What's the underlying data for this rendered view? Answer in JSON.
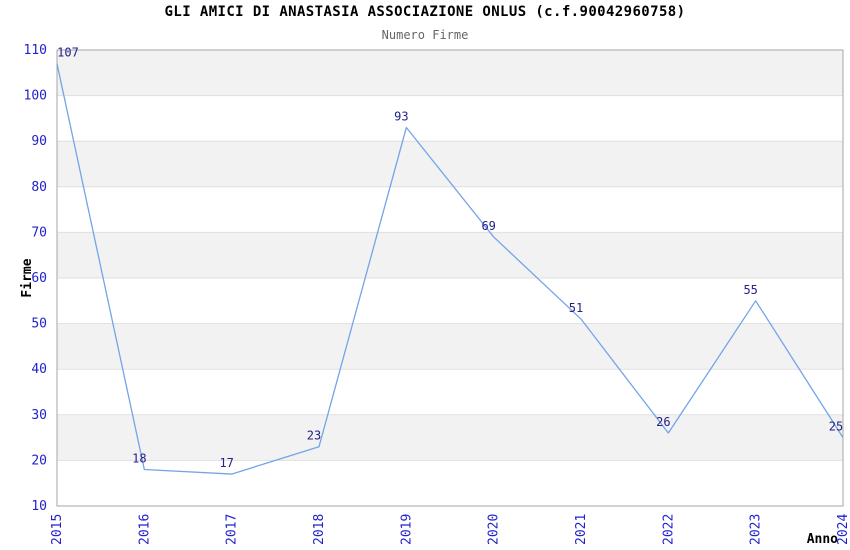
{
  "chart_data": {
    "type": "line",
    "title": "GLI AMICI DI ANASTASIA ASSOCIAZIONE ONLUS (c.f.90042960758)",
    "subtitle": "Numero Firme",
    "xlabel": "Anno",
    "ylabel": "Firme",
    "categories": [
      "2015",
      "2016",
      "2017",
      "2018",
      "2019",
      "2020",
      "2021",
      "2022",
      "2023",
      "2024"
    ],
    "values": [
      107,
      18,
      17,
      23,
      93,
      69,
      51,
      26,
      55,
      25
    ],
    "point_labels": [
      "107",
      "18",
      "17",
      "23",
      "93",
      "69",
      "51",
      "26",
      "55",
      "25"
    ],
    "ylim": [
      10,
      110
    ],
    "ytick_step": 10,
    "yticks": [
      10,
      20,
      30,
      40,
      50,
      60,
      70,
      80,
      90,
      100,
      110
    ],
    "grid": "horizontal gridlines every 10 units with alternating gray bands",
    "legend_position": "none",
    "colors": {
      "line": "#74a4e8",
      "tick_labels": "#2222cc",
      "point_labels": "#222288",
      "band": "#f2f2f2",
      "gridline": "#e0e0e0",
      "plot_border": "#a6a6a6",
      "title": "#000000",
      "subtitle": "#666666",
      "axis_labels": "#000000"
    }
  }
}
